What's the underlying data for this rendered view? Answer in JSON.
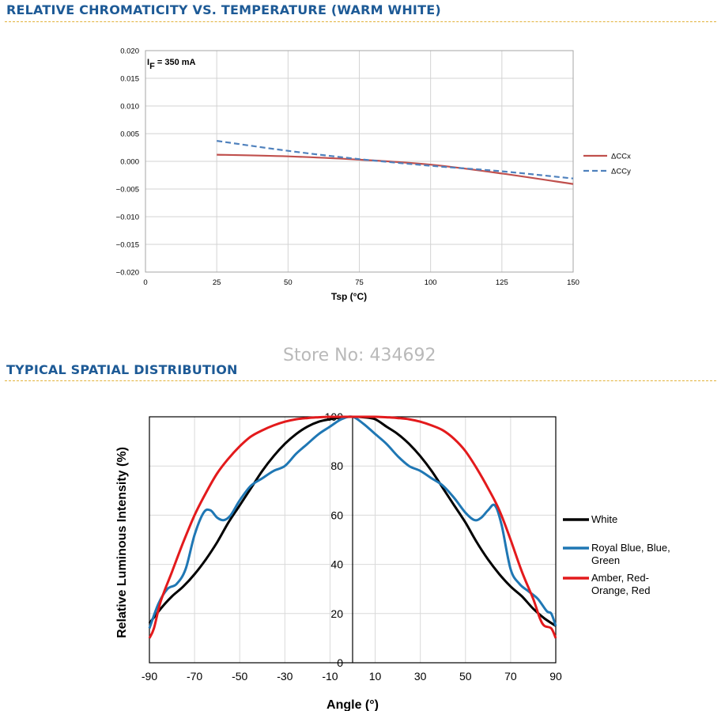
{
  "headers": {
    "chromaticity_title": "RELATIVE CHROMATICITY VS. TEMPERATURE (WARM WHITE)",
    "spatial_title": "TYPICAL SPATIAL DISTRIBUTION",
    "watermark": "Store No: 434692",
    "divider_color": "#e2b23a",
    "title_color": "#1d5a96"
  },
  "chart_data": [
    {
      "type": "line",
      "title": "",
      "annotation": {
        "main": "I",
        "sub": "F",
        "rest": " = 350 mA"
      },
      "xlabel": "Tsp (°C)",
      "ylabel": "",
      "xlim": [
        0,
        150
      ],
      "ylim": [
        -0.02,
        0.02
      ],
      "xticks": [
        0,
        25,
        50,
        75,
        100,
        125,
        150
      ],
      "yticks": [
        0.02,
        0.015,
        0.01,
        0.005,
        0.0,
        -0.005,
        -0.01,
        -0.015,
        -0.02
      ],
      "ytick_labels": [
        "0.020",
        "0.015",
        "0.010",
        "0.005",
        "0.000",
        "−0.005",
        "−0.010",
        "−0.015",
        "−0.020"
      ],
      "grid": true,
      "legend_position": "right",
      "series": [
        {
          "name": "ΔCCx",
          "color": "#c0504d",
          "dash": false,
          "x": [
            25,
            50,
            75,
            100,
            125,
            150
          ],
          "y": [
            0.0012,
            0.0009,
            0.0003,
            -0.0006,
            -0.0022,
            -0.0041
          ]
        },
        {
          "name": "ΔCCy",
          "color": "#4f81bd",
          "dash": true,
          "x": [
            25,
            50,
            75,
            100,
            125,
            150
          ],
          "y": [
            0.0037,
            0.0019,
            0.0004,
            -0.0008,
            -0.0018,
            -0.0031
          ]
        }
      ]
    },
    {
      "type": "line",
      "title": "",
      "xlabel": "Angle (°)",
      "ylabel": "Relative Luminous Intensity (%)",
      "xlim": [
        -90,
        90
      ],
      "ylim": [
        0,
        100
      ],
      "xticks": [
        -90,
        -70,
        -50,
        -30,
        -10,
        10,
        30,
        50,
        70,
        90
      ],
      "yticks": [
        0,
        20,
        40,
        60,
        80,
        100
      ],
      "grid": true,
      "legend_position": "right",
      "series": [
        {
          "name": "White",
          "color": "#000000",
          "x": [
            -90,
            -85,
            -80,
            -75,
            -70,
            -65,
            -60,
            -55,
            -50,
            -45,
            -40,
            -35,
            -30,
            -25,
            -20,
            -15,
            -10,
            -5,
            0,
            5,
            10,
            15,
            20,
            25,
            30,
            35,
            40,
            45,
            50,
            55,
            60,
            65,
            70,
            75,
            80,
            85,
            90
          ],
          "y": [
            16,
            22,
            27,
            31,
            36,
            42,
            49,
            57,
            64,
            71,
            78,
            84,
            89,
            93,
            96,
            98,
            99,
            99.8,
            100,
            99.8,
            99,
            96,
            93,
            89,
            84,
            78,
            71,
            64,
            57,
            49,
            42,
            36,
            31,
            27,
            22,
            18,
            15
          ]
        },
        {
          "name": "Royal Blue, Blue, Green",
          "color": "#1f77b4",
          "x": [
            -90,
            -86,
            -82,
            -78,
            -74,
            -70,
            -66,
            -63,
            -60,
            -57,
            -54,
            -50,
            -45,
            -40,
            -35,
            -30,
            -25,
            -20,
            -15,
            -10,
            -5,
            0,
            5,
            10,
            15,
            20,
            25,
            30,
            35,
            40,
            45,
            50,
            54,
            57,
            60,
            63,
            66,
            70,
            74,
            78,
            82,
            86,
            88,
            90
          ],
          "y": [
            14,
            24,
            30,
            32,
            38,
            52,
            61,
            62,
            59,
            58,
            60,
            66,
            72,
            75,
            78,
            80,
            85,
            89,
            93,
            96,
            99,
            100,
            97,
            93,
            89,
            84,
            80,
            78,
            75,
            72,
            67,
            61,
            58,
            59,
            62,
            64,
            56,
            38,
            32,
            29,
            26,
            21,
            20,
            15
          ]
        },
        {
          "name": "Amber, Red-Orange, Red",
          "color": "#e31a1c",
          "x": [
            -90,
            -88,
            -85,
            -80,
            -75,
            -70,
            -65,
            -60,
            -55,
            -50,
            -45,
            -40,
            -35,
            -30,
            -25,
            -20,
            -15,
            -10,
            -5,
            0,
            5,
            10,
            15,
            20,
            25,
            30,
            35,
            40,
            45,
            50,
            55,
            60,
            65,
            70,
            75,
            80,
            83,
            85,
            88,
            90
          ],
          "y": [
            10,
            14,
            25,
            37,
            49,
            60,
            69,
            77,
            83,
            88,
            92,
            94.5,
            96.5,
            98,
            99,
            99.5,
            99.8,
            100,
            100,
            100,
            100,
            100,
            99.8,
            99.5,
            99,
            98,
            96.5,
            94.5,
            91,
            86,
            79,
            71,
            62,
            50,
            37,
            26,
            18,
            15,
            14,
            10
          ]
        }
      ]
    }
  ]
}
